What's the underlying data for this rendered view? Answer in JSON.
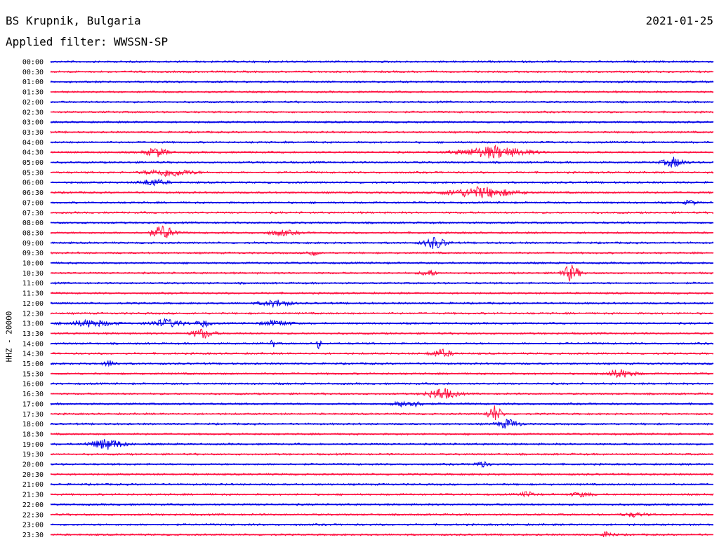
{
  "header": {
    "station": "BS Krupnik, Bulgaria",
    "filter": "Applied filter: WWSSN-SP",
    "date": "2021-01-25"
  },
  "colors": {
    "even": "#0000e6",
    "odd": "#ff1040"
  },
  "chart_data": {
    "type": "line",
    "title": "BS Krupnik, Bulgaria",
    "subtitle": "Applied filter: WWSSN-SP",
    "ylabel": "HHZ - 20000",
    "xlabel": "",
    "trace_count": 48,
    "tick_labels": [
      "00:00",
      "00:30",
      "01:00",
      "01:30",
      "02:00",
      "02:30",
      "03:00",
      "03:30",
      "04:00",
      "04:30",
      "05:00",
      "05:30",
      "06:00",
      "06:30",
      "07:00",
      "07:30",
      "08:00",
      "08:30",
      "09:00",
      "09:30",
      "10:00",
      "10:30",
      "11:00",
      "11:30",
      "12:00",
      "12:30",
      "13:00",
      "13:30",
      "14:00",
      "14:30",
      "15:00",
      "15:30",
      "16:00",
      "16:30",
      "17:00",
      "17:30",
      "18:00",
      "18:30",
      "19:00",
      "19:30",
      "20:00",
      "20:30",
      "21:00",
      "21:30",
      "22:00",
      "22:30",
      "23:00",
      "23:30"
    ],
    "events": [
      {
        "trace": 9,
        "pos": 0.13,
        "len": 0.06,
        "amp": 7
      },
      {
        "trace": 9,
        "pos": 0.58,
        "len": 0.18,
        "amp": 9
      },
      {
        "trace": 10,
        "pos": 0.91,
        "len": 0.06,
        "amp": 7
      },
      {
        "trace": 11,
        "pos": 0.12,
        "len": 0.12,
        "amp": 6
      },
      {
        "trace": 12,
        "pos": 0.12,
        "len": 0.07,
        "amp": 5
      },
      {
        "trace": 13,
        "pos": 0.56,
        "len": 0.18,
        "amp": 8
      },
      {
        "trace": 14,
        "pos": 0.95,
        "len": 0.03,
        "amp": 4
      },
      {
        "trace": 17,
        "pos": 0.14,
        "len": 0.06,
        "amp": 11
      },
      {
        "trace": 17,
        "pos": 0.31,
        "len": 0.08,
        "amp": 4
      },
      {
        "trace": 18,
        "pos": 0.55,
        "len": 0.06,
        "amp": 9
      },
      {
        "trace": 19,
        "pos": 0.38,
        "len": 0.03,
        "amp": 5
      },
      {
        "trace": 21,
        "pos": 0.76,
        "len": 0.05,
        "amp": 12
      },
      {
        "trace": 21,
        "pos": 0.55,
        "len": 0.04,
        "amp": 5
      },
      {
        "trace": 24,
        "pos": 0.3,
        "len": 0.08,
        "amp": 5
      },
      {
        "trace": 26,
        "pos": 0.0,
        "len": 0.12,
        "amp": 5
      },
      {
        "trace": 26,
        "pos": 0.13,
        "len": 0.09,
        "amp": 6
      },
      {
        "trace": 26,
        "pos": 0.21,
        "len": 0.04,
        "amp": 5
      },
      {
        "trace": 26,
        "pos": 0.3,
        "len": 0.08,
        "amp": 4
      },
      {
        "trace": 27,
        "pos": 0.2,
        "len": 0.06,
        "amp": 7
      },
      {
        "trace": 28,
        "pos": 0.33,
        "len": 0.01,
        "amp": 9
      },
      {
        "trace": 28,
        "pos": 0.4,
        "len": 0.01,
        "amp": 9
      },
      {
        "trace": 29,
        "pos": 0.56,
        "len": 0.06,
        "amp": 6
      },
      {
        "trace": 30,
        "pos": 0.07,
        "len": 0.04,
        "amp": 4
      },
      {
        "trace": 31,
        "pos": 0.82,
        "len": 0.08,
        "amp": 6
      },
      {
        "trace": 33,
        "pos": 0.55,
        "len": 0.08,
        "amp": 9
      },
      {
        "trace": 34,
        "pos": 0.5,
        "len": 0.08,
        "amp": 5
      },
      {
        "trace": 35,
        "pos": 0.65,
        "len": 0.04,
        "amp": 12
      },
      {
        "trace": 36,
        "pos": 0.66,
        "len": 0.06,
        "amp": 7
      },
      {
        "trace": 38,
        "pos": 0.04,
        "len": 0.09,
        "amp": 8
      },
      {
        "trace": 40,
        "pos": 0.63,
        "len": 0.04,
        "amp": 4
      },
      {
        "trace": 43,
        "pos": 0.7,
        "len": 0.04,
        "amp": 4
      },
      {
        "trace": 43,
        "pos": 0.77,
        "len": 0.06,
        "amp": 3
      },
      {
        "trace": 45,
        "pos": 0.85,
        "len": 0.06,
        "amp": 3
      },
      {
        "trace": 47,
        "pos": 0.82,
        "len": 0.04,
        "amp": 4
      }
    ],
    "grid": false,
    "legend": "none"
  }
}
